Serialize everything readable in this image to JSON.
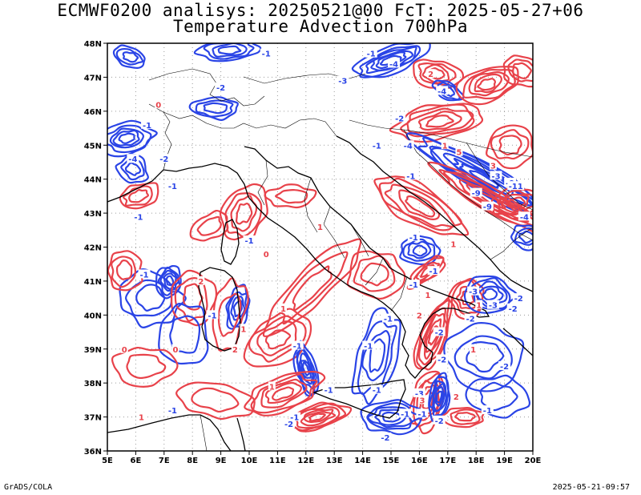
{
  "title": {
    "line1": "ECMWF0200 analisys: 20250521@00 FcT: 2025-05-27+06",
    "line2": "Temperature Advection 700hPa"
  },
  "footer": {
    "left": "GrADS/COLA",
    "right": "2025-05-21-09:57"
  },
  "map": {
    "lon_labels": [
      "5E",
      "6E",
      "7E",
      "8E",
      "9E",
      "10E",
      "11E",
      "12E",
      "13E",
      "14E",
      "15E",
      "16E",
      "17E",
      "18E",
      "19E",
      "20E"
    ],
    "lat_labels": [
      "48N",
      "47N",
      "46N",
      "45N",
      "44N",
      "43N",
      "42N",
      "41N",
      "40N",
      "39N",
      "38N",
      "37N",
      "36N"
    ],
    "lon_range": [
      5,
      20
    ],
    "lat_range": [
      36,
      48
    ],
    "grid": true,
    "colors": {
      "positive": "#e8424a",
      "negative": "#2a44e6",
      "coast": "#000000",
      "border": "#000000",
      "grid": "#9a9a9a"
    },
    "contour_labels": [
      {
        "text": "-1",
        "lon": 10.6,
        "lat": 47.7,
        "sign": "neg"
      },
      {
        "text": "-1",
        "lon": 14.3,
        "lat": 47.7,
        "sign": "neg"
      },
      {
        "text": "-4",
        "lon": 15.1,
        "lat": 47.4,
        "sign": "neg"
      },
      {
        "text": "-3",
        "lon": 13.3,
        "lat": 46.9,
        "sign": "neg"
      },
      {
        "text": "-2",
        "lon": 9.0,
        "lat": 46.7,
        "sign": "neg"
      },
      {
        "text": "0",
        "lon": 6.8,
        "lat": 46.2,
        "sign": "pos"
      },
      {
        "text": "2",
        "lon": 16.4,
        "lat": 47.1,
        "sign": "pos"
      },
      {
        "text": "-4",
        "lon": 16.8,
        "lat": 46.6,
        "sign": "neg"
      },
      {
        "text": "-1",
        "lon": 6.4,
        "lat": 45.6,
        "sign": "neg"
      },
      {
        "text": "-2",
        "lon": 15.3,
        "lat": 45.8,
        "sign": "neg"
      },
      {
        "text": "-4",
        "lon": 15.6,
        "lat": 45.0,
        "sign": "neg"
      },
      {
        "text": "-1",
        "lon": 14.5,
        "lat": 45.0,
        "sign": "neg"
      },
      {
        "text": "1",
        "lon": 16.9,
        "lat": 45.0,
        "sign": "pos"
      },
      {
        "text": "5",
        "lon": 17.4,
        "lat": 44.8,
        "sign": "pos"
      },
      {
        "text": "-4",
        "lon": 5.9,
        "lat": 44.6,
        "sign": "neg"
      },
      {
        "text": "-2",
        "lon": 7.0,
        "lat": 44.6,
        "sign": "neg"
      },
      {
        "text": "3",
        "lon": 18.6,
        "lat": 44.4,
        "sign": "pos"
      },
      {
        "text": "-1",
        "lon": 15.7,
        "lat": 44.1,
        "sign": "neg"
      },
      {
        "text": "-3",
        "lon": 18.7,
        "lat": 44.1,
        "sign": "neg"
      },
      {
        "text": "-9",
        "lon": 19.2,
        "lat": 43.9,
        "sign": "neg"
      },
      {
        "text": "-11",
        "lon": 19.4,
        "lat": 43.8,
        "sign": "neg"
      },
      {
        "text": "-9",
        "lon": 18.0,
        "lat": 43.6,
        "sign": "neg"
      },
      {
        "text": "-1",
        "lon": 7.3,
        "lat": 43.8,
        "sign": "neg"
      },
      {
        "text": "-9",
        "lon": 18.4,
        "lat": 43.2,
        "sign": "neg"
      },
      {
        "text": "-4",
        "lon": 19.7,
        "lat": 42.9,
        "sign": "neg"
      },
      {
        "text": "-1",
        "lon": 6.1,
        "lat": 42.9,
        "sign": "neg"
      },
      {
        "text": "1",
        "lon": 12.5,
        "lat": 42.6,
        "sign": "pos"
      },
      {
        "text": "-1",
        "lon": 15.8,
        "lat": 42.3,
        "sign": "neg"
      },
      {
        "text": "-1",
        "lon": 10.0,
        "lat": 42.2,
        "sign": "neg"
      },
      {
        "text": "1",
        "lon": 17.2,
        "lat": 42.1,
        "sign": "pos"
      },
      {
        "text": "0",
        "lon": 10.6,
        "lat": 41.8,
        "sign": "pos"
      },
      {
        "text": "-1",
        "lon": 16.5,
        "lat": 41.3,
        "sign": "neg"
      },
      {
        "text": "-1",
        "lon": 6.3,
        "lat": 41.2,
        "sign": "neg"
      },
      {
        "text": "-1",
        "lon": 15.8,
        "lat": 40.9,
        "sign": "neg"
      },
      {
        "text": "-3",
        "lon": 17.9,
        "lat": 40.7,
        "sign": "neg"
      },
      {
        "text": "2",
        "lon": 8.3,
        "lat": 41.0,
        "sign": "pos"
      },
      {
        "text": "1",
        "lon": 16.3,
        "lat": 40.6,
        "sign": "pos"
      },
      {
        "text": "1",
        "lon": 18.1,
        "lat": 40.3,
        "sign": "pos"
      },
      {
        "text": "-3",
        "lon": 18.6,
        "lat": 40.3,
        "sign": "neg"
      },
      {
        "text": "-2",
        "lon": 19.5,
        "lat": 40.5,
        "sign": "neg"
      },
      {
        "text": "-2",
        "lon": 19.3,
        "lat": 40.2,
        "sign": "neg"
      },
      {
        "text": "1",
        "lon": 11.2,
        "lat": 40.2,
        "sign": "pos"
      },
      {
        "text": "-1",
        "lon": 8.7,
        "lat": 40.0,
        "sign": "neg"
      },
      {
        "text": "2",
        "lon": 16.0,
        "lat": 40.0,
        "sign": "pos"
      },
      {
        "text": "-2",
        "lon": 17.8,
        "lat": 39.9,
        "sign": "neg"
      },
      {
        "text": "-1",
        "lon": 14.9,
        "lat": 39.9,
        "sign": "neg"
      },
      {
        "text": "1",
        "lon": 9.8,
        "lat": 39.6,
        "sign": "pos"
      },
      {
        "text": "-2",
        "lon": 16.7,
        "lat": 39.5,
        "sign": "neg"
      },
      {
        "text": "1",
        "lon": 17.9,
        "lat": 39.0,
        "sign": "pos"
      },
      {
        "text": "0",
        "lon": 5.6,
        "lat": 39.0,
        "sign": "pos"
      },
      {
        "text": "0",
        "lon": 7.4,
        "lat": 39.0,
        "sign": "pos"
      },
      {
        "text": "2",
        "lon": 9.5,
        "lat": 39.0,
        "sign": "pos"
      },
      {
        "text": "-1",
        "lon": 11.7,
        "lat": 39.1,
        "sign": "neg"
      },
      {
        "text": "-1",
        "lon": 14.2,
        "lat": 39.1,
        "sign": "neg"
      },
      {
        "text": "-2",
        "lon": 16.8,
        "lat": 38.7,
        "sign": "neg"
      },
      {
        "text": "-2",
        "lon": 19.0,
        "lat": 38.5,
        "sign": "neg"
      },
      {
        "text": "1",
        "lon": 10.8,
        "lat": 37.9,
        "sign": "pos"
      },
      {
        "text": "-1",
        "lon": 12.8,
        "lat": 37.8,
        "sign": "neg"
      },
      {
        "text": "-1",
        "lon": 14.5,
        "lat": 37.8,
        "sign": "neg"
      },
      {
        "text": "-3",
        "lon": 16.0,
        "lat": 37.7,
        "sign": "neg"
      },
      {
        "text": "3",
        "lon": 16.1,
        "lat": 37.5,
        "sign": "pos"
      },
      {
        "text": "2",
        "lon": 17.3,
        "lat": 37.6,
        "sign": "pos"
      },
      {
        "text": "-1",
        "lon": 11.6,
        "lat": 37.0,
        "sign": "neg"
      },
      {
        "text": "-2",
        "lon": 11.4,
        "lat": 36.8,
        "sign": "neg"
      },
      {
        "text": "-1",
        "lon": 15.5,
        "lat": 37.1,
        "sign": "neg"
      },
      {
        "text": "-1",
        "lon": 16.1,
        "lat": 37.1,
        "sign": "neg"
      },
      {
        "text": "-2",
        "lon": 16.7,
        "lat": 36.9,
        "sign": "neg"
      },
      {
        "text": "-1",
        "lon": 18.4,
        "lat": 37.2,
        "sign": "neg"
      },
      {
        "text": "-2",
        "lon": 14.8,
        "lat": 36.4,
        "sign": "neg"
      },
      {
        "text": "1",
        "lon": 6.2,
        "lat": 37.0,
        "sign": "pos"
      },
      {
        "text": "-1",
        "lon": 7.3,
        "lat": 37.2,
        "sign": "neg"
      }
    ]
  }
}
